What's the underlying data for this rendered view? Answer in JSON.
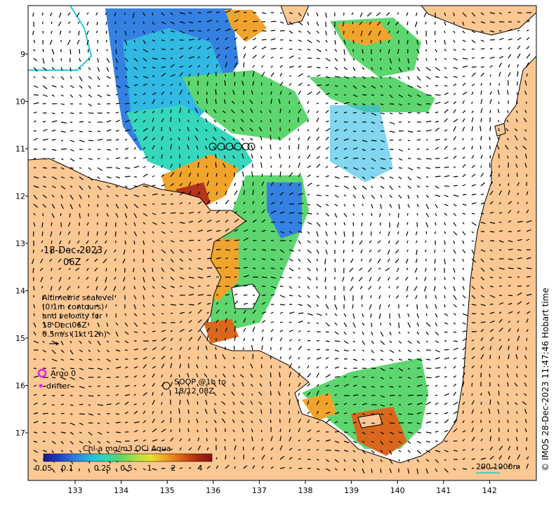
{
  "map": {
    "colors": {
      "land": "#fbc894",
      "water": "#ffffff",
      "coast": "#000000",
      "reef_line": "#28c8d8"
    },
    "lon_labels": [
      "133",
      "134",
      "135",
      "136",
      "137",
      "138",
      "139",
      "140",
      "141",
      "142"
    ],
    "lat_labels": [
      "9",
      "10",
      "11",
      "12",
      "13",
      "14",
      "15",
      "16",
      "17"
    ],
    "date_line1": "18-Dec-2023",
    "date_line2": "06Z",
    "altimetry_notes": [
      "Altimetric sealevel",
      "(0.1m contours)",
      "and velocity for",
      "18 Dec 06Z",
      "0.5m/s (1kt 12h)"
    ],
    "argo_label": "Argo 0",
    "drifter_label": "drifter",
    "soop_label_line1": "SOOP @1h to",
    "soop_label_line2": "18/12 08Z",
    "colorbar_title": "Chl-a mg/m3 OCi Aqua",
    "colorbar_ticks": [
      "0.05",
      "0.1",
      "0.25",
      "0.5",
      "1",
      "2",
      "4"
    ],
    "colorbar_colors": [
      "#1a1a8c",
      "#1f3fc4",
      "#2b7be0",
      "#25b6e2",
      "#2cd6b8",
      "#56d468",
      "#a8e040",
      "#e8e030",
      "#f0a020",
      "#d86010",
      "#b02a10",
      "#8a1010"
    ],
    "scale_label": "200  1000m",
    "credit": "© IMOS 28-Dec-2023 11:47:46 Hobart time"
  }
}
